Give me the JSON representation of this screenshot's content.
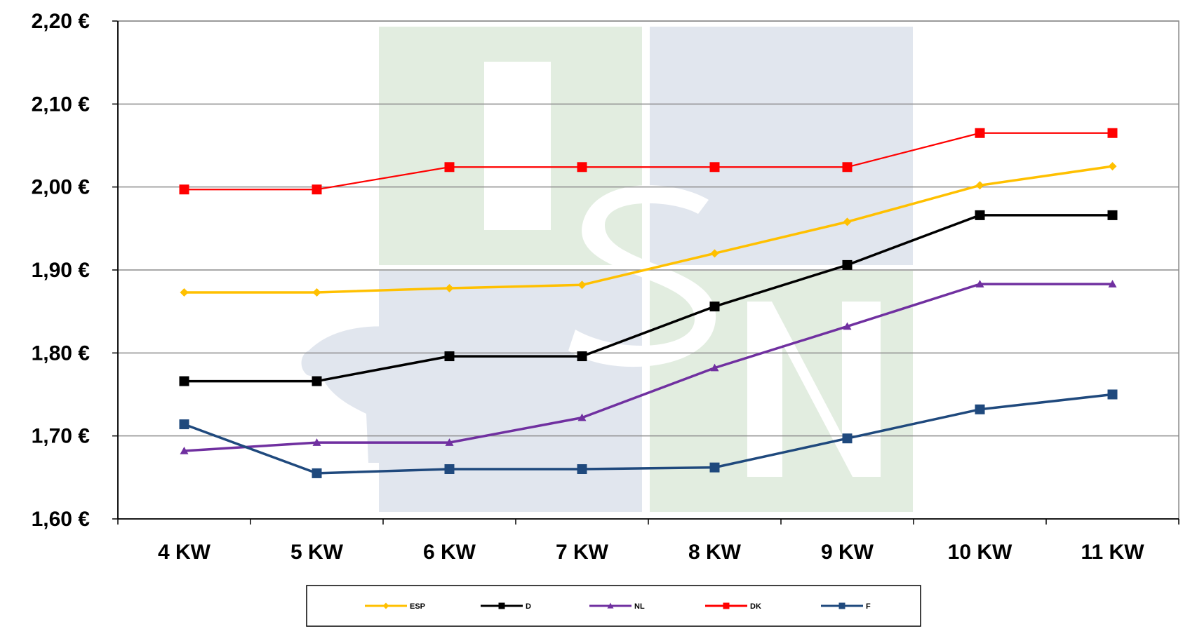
{
  "chart_data": {
    "type": "line",
    "categories": [
      "4 KW",
      "5 KW",
      "6 KW",
      "7 KW",
      "8 KW",
      "9 KW",
      "10 KW",
      "11 KW"
    ],
    "ylim": [
      1.6,
      2.2
    ],
    "yticks": [
      1.6,
      1.7,
      1.8,
      1.9,
      2.0,
      2.1,
      2.2
    ],
    "ytick_labels": [
      "1,60 €",
      "1,70 €",
      "1,80 €",
      "1,90 €",
      "2,00 €",
      "2,10 €",
      "2,20 €"
    ],
    "grid": true,
    "legend_position": "bottom",
    "watermark_text": "ISN",
    "series": [
      {
        "name": "ESP",
        "color": "#FFC000",
        "marker": "diamond",
        "values": [
          1.873,
          1.873,
          1.878,
          1.882,
          1.92,
          1.958,
          2.002,
          2.025
        ]
      },
      {
        "name": "D",
        "color": "#000000",
        "marker": "square",
        "values": [
          1.766,
          1.766,
          1.796,
          1.796,
          1.856,
          1.906,
          1.966,
          1.966
        ]
      },
      {
        "name": "NL",
        "color": "#7030A0",
        "marker": "triangle",
        "values": [
          1.682,
          1.692,
          1.692,
          1.722,
          1.782,
          1.832,
          1.883,
          1.883
        ]
      },
      {
        "name": "DK",
        "color": "#FF0000",
        "marker": "square",
        "values": [
          1.997,
          1.997,
          2.024,
          2.024,
          2.024,
          2.024,
          2.065,
          2.065
        ]
      },
      {
        "name": "F",
        "color": "#1F497D",
        "marker": "square",
        "values": [
          1.714,
          1.655,
          1.66,
          1.66,
          1.662,
          1.697,
          1.732,
          1.75
        ]
      }
    ]
  }
}
